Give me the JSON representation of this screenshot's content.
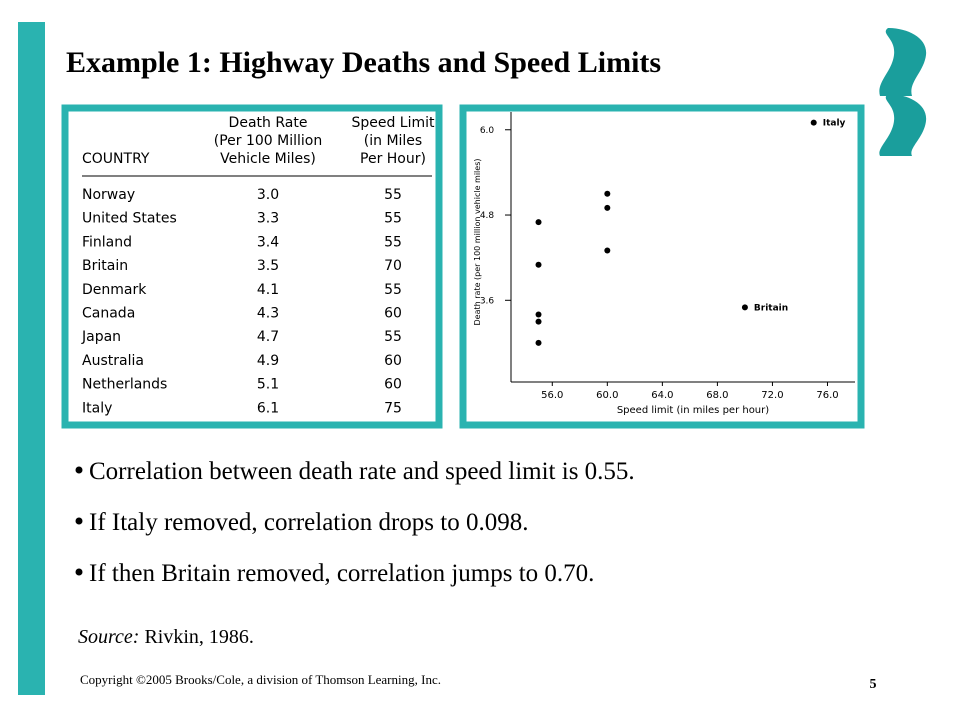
{
  "title": "Example 1: Highway Deaths and Speed Limits",
  "table": {
    "headers": [
      [
        "COUNTRY"
      ],
      [
        "Death Rate",
        "(Per 100 Million",
        "Vehicle Miles)"
      ],
      [
        "Speed Limit",
        "(in Miles",
        "Per Hour)"
      ]
    ],
    "rows": [
      [
        "Norway",
        "3.0",
        "55"
      ],
      [
        "United States",
        "3.3",
        "55"
      ],
      [
        "Finland",
        "3.4",
        "55"
      ],
      [
        "Britain",
        "3.5",
        "70"
      ],
      [
        "Denmark",
        "4.1",
        "55"
      ],
      [
        "Canada",
        "4.3",
        "60"
      ],
      [
        "Japan",
        "4.7",
        "55"
      ],
      [
        "Australia",
        "4.9",
        "60"
      ],
      [
        "Netherlands",
        "5.1",
        "60"
      ],
      [
        "Italy",
        "6.1",
        "75"
      ]
    ]
  },
  "chart_data": {
    "type": "scatter",
    "x_label": "Speed limit (in miles per hour)",
    "y_label": "Death rate (per 100 million vehicle miles)",
    "x": [
      55,
      55,
      55,
      70,
      55,
      60,
      55,
      60,
      60,
      75
    ],
    "values": [
      3.0,
      3.3,
      3.4,
      3.5,
      4.1,
      4.3,
      4.7,
      4.9,
      5.1,
      6.1
    ],
    "point_labels": [
      null,
      null,
      null,
      "Britain",
      null,
      null,
      null,
      null,
      null,
      "Italy"
    ],
    "color": "#000000",
    "xlim": [
      53,
      78
    ],
    "xticks": [
      {
        "value": 56,
        "label": "56.0"
      },
      {
        "value": 60,
        "label": "60.0"
      },
      {
        "value": 64,
        "label": "64.0"
      },
      {
        "value": 68,
        "label": "68.0"
      },
      {
        "value": 72,
        "label": "72.0"
      },
      {
        "value": 76,
        "label": "76.0"
      }
    ],
    "ylim": [
      2.45,
      6.25
    ],
    "yticks": [
      3.6,
      4.8,
      {
        "value": 6,
        "label": "6.0"
      }
    ]
  },
  "bullets": [
    "Correlation between death rate and speed limit is 0.55.",
    "If Italy removed, correlation drops to 0.098.",
    "If then Britain removed, correlation jumps to 0.70."
  ],
  "source": {
    "label": "Source:",
    "text": "Rivkin, 1986."
  },
  "copyright": "Copyright ©2005 Brooks/Cole, a division of Thomson Learning, Inc.",
  "page_number": "5"
}
